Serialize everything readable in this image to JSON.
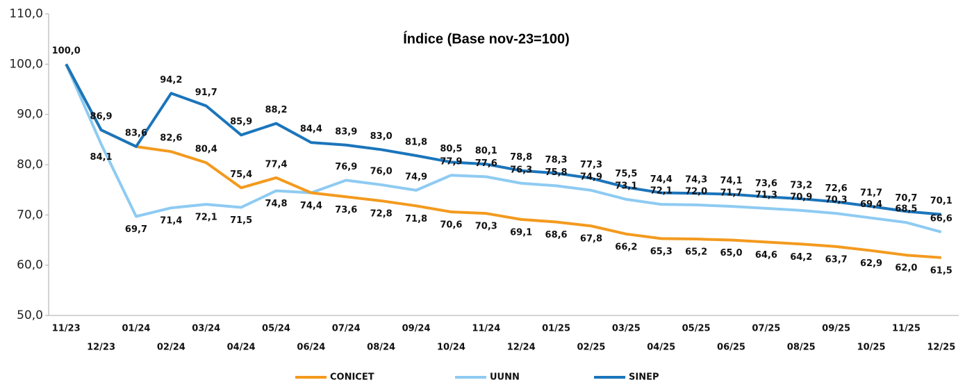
{
  "chart_data": {
    "type": "line",
    "title": "Índice (Base nov-23=100)",
    "categories": [
      "11/23",
      "12/23",
      "01/24",
      "02/24",
      "03/24",
      "04/24",
      "05/24",
      "06/24",
      "07/24",
      "08/24",
      "09/24",
      "10/24",
      "11/24",
      "12/24",
      "01/25",
      "02/25",
      "03/25",
      "04/25",
      "05/25",
      "06/25",
      "07/25",
      "08/25",
      "09/25",
      "10/25",
      "11/25",
      "12/25"
    ],
    "series": [
      {
        "name": "CONICET",
        "color": "#f39a1e",
        "values": [
          100.0,
          86.9,
          83.6,
          82.6,
          80.4,
          75.4,
          77.4,
          74.4,
          73.6,
          72.8,
          71.8,
          70.6,
          70.3,
          69.1,
          68.6,
          67.8,
          66.2,
          65.3,
          65.2,
          65.0,
          64.6,
          64.2,
          63.7,
          62.9,
          62.0,
          61.5
        ],
        "value_labels": [
          null,
          null,
          null,
          "82,6",
          "80,4",
          "75,4",
          "77,4",
          null,
          "73,6",
          "72,8",
          "71,8",
          "70,6",
          "70,3",
          "69,1",
          "68,6",
          "67,8",
          "66,2",
          "65,3",
          "65,2",
          "65,0",
          "64,6",
          "64,2",
          "63,7",
          "62,9",
          "62,0",
          "61,5"
        ]
      },
      {
        "name": "UUNN",
        "color": "#8ecbf2",
        "values": [
          100.0,
          84.1,
          69.7,
          71.4,
          72.1,
          71.5,
          74.8,
          74.4,
          76.9,
          76.0,
          74.9,
          77.9,
          77.6,
          76.3,
          75.8,
          74.9,
          73.1,
          72.1,
          72.0,
          71.7,
          71.3,
          70.9,
          70.3,
          69.4,
          68.5,
          66.6
        ],
        "value_labels": [
          null,
          "84,1",
          "69,7",
          "71,4",
          "72,1",
          "71,5",
          "74,8",
          "74,4",
          "76,9",
          "76,0",
          "74,9",
          "77,9",
          "77,6",
          "76,3",
          "75,8",
          "74,9",
          "73,1",
          "72,1",
          "72,0",
          "71,7",
          "71,3",
          "70,9",
          "70,3",
          "69,4",
          "68,5",
          "66,6"
        ]
      },
      {
        "name": "SINEP",
        "color": "#1b75bb",
        "values": [
          100.0,
          86.9,
          83.6,
          94.2,
          91.7,
          85.9,
          88.2,
          84.4,
          83.9,
          83.0,
          81.8,
          80.5,
          80.1,
          78.8,
          78.3,
          77.3,
          75.5,
          74.4,
          74.3,
          74.1,
          73.6,
          73.2,
          72.6,
          71.7,
          70.7,
          70.1
        ],
        "value_labels": [
          "100,0",
          "86,9",
          "83,6",
          "94,2",
          "91,7",
          "85,9",
          "88,2",
          "84,4",
          "83,9",
          "83,0",
          "81,8",
          "80,5",
          "80,1",
          "78,8",
          "78,3",
          "77,3",
          "75,5",
          "74,4",
          "74,3",
          "74,1",
          "73,6",
          "73,2",
          "72,6",
          "71,7",
          "70,7",
          "70,1"
        ]
      }
    ],
    "ylim": [
      50,
      110
    ],
    "yticks": [
      {
        "value": 50,
        "label": "50,0"
      },
      {
        "value": 60,
        "label": "60,0"
      },
      {
        "value": 70,
        "label": "70,0"
      },
      {
        "value": 80,
        "label": "80,0"
      },
      {
        "value": 90,
        "label": "90,0"
      },
      {
        "value": 100,
        "label": "100,0"
      },
      {
        "value": 110,
        "label": "110,0"
      }
    ],
    "grid": false,
    "legend": "bottom"
  }
}
